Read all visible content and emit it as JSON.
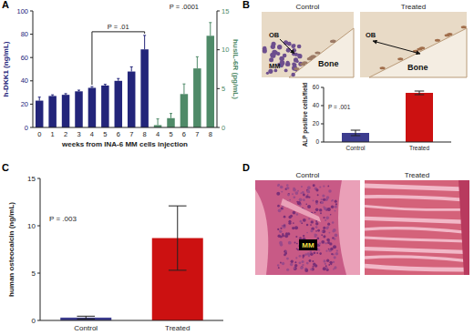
{
  "chart_data": [
    {
      "type": "bar",
      "panel": "A",
      "categories": [
        "0",
        "1",
        "2",
        "3",
        "4",
        "5",
        "6",
        "7",
        "8",
        "4",
        "5",
        "6",
        "7",
        "8"
      ],
      "xlabel": "weeks from INA-6 MM cells injection",
      "ylabel": "h-DKK1 (ng/mL)",
      "y2label": "husIL-6R (pg/mL)",
      "ylim": [
        0,
        100
      ],
      "yticks": [
        0,
        20,
        40,
        60,
        80,
        100
      ],
      "y2lim": [
        0,
        15
      ],
      "y2ticks": [
        0,
        5,
        10,
        15
      ],
      "series": [
        {
          "color": "#23257a",
          "values": [
            23,
            27,
            28,
            31,
            34,
            36,
            40,
            48,
            67,
            null,
            null,
            null,
            null,
            null
          ],
          "errors": [
            3,
            1,
            1,
            1,
            1,
            1,
            2,
            4,
            12,
            null,
            null,
            null,
            null,
            null
          ]
        },
        {
          "color": "#4f8a68",
          "axis": "y2",
          "values": [
            null,
            null,
            null,
            null,
            null,
            null,
            null,
            null,
            null,
            0.3,
            1.2,
            4.3,
            7.6,
            11.8
          ],
          "errors": [
            null,
            null,
            null,
            null,
            null,
            null,
            null,
            null,
            null,
            0.8,
            0.6,
            1.3,
            1.5,
            1.7
          ]
        }
      ],
      "annotations": [
        "P = .01",
        "P = .0001"
      ]
    },
    {
      "type": "bar",
      "categories": [
        "Control",
        "Treated"
      ],
      "ylabel": "ALP positive cells/field",
      "ylim": [
        0,
        60
      ],
      "yticks": [
        0,
        20,
        40,
        60
      ],
      "values": [
        10,
        54
      ],
      "errors": [
        3,
        2
      ],
      "colors": [
        "#3d3d8f",
        "#cc1111"
      ],
      "annotations": [
        "P = .001"
      ]
    },
    {
      "type": "bar",
      "panel": "C",
      "categories": [
        "Control",
        "Treated"
      ],
      "ylabel": "human osteocalcin (ng/mL)",
      "ylim": [
        0,
        15
      ],
      "yticks": [
        0,
        5,
        10,
        15
      ],
      "values": [
        0.3,
        8.7
      ],
      "errors": [
        0.15,
        3.4
      ],
      "colors": [
        "#3d3d8f",
        "#cc1111"
      ],
      "annotations": [
        "P = .003"
      ]
    }
  ],
  "images": [
    {
      "panel": "B",
      "items": [
        {
          "caption": "Control",
          "labels": [
            "OB",
            "MM",
            "Bone"
          ]
        },
        {
          "caption": "Treated",
          "labels": [
            "OB",
            "Bone"
          ]
        }
      ]
    },
    {
      "panel": "D",
      "items": [
        {
          "caption": "Control",
          "labels": [
            "MM"
          ]
        },
        {
          "caption": "Treated",
          "labels": []
        }
      ]
    }
  ]
}
